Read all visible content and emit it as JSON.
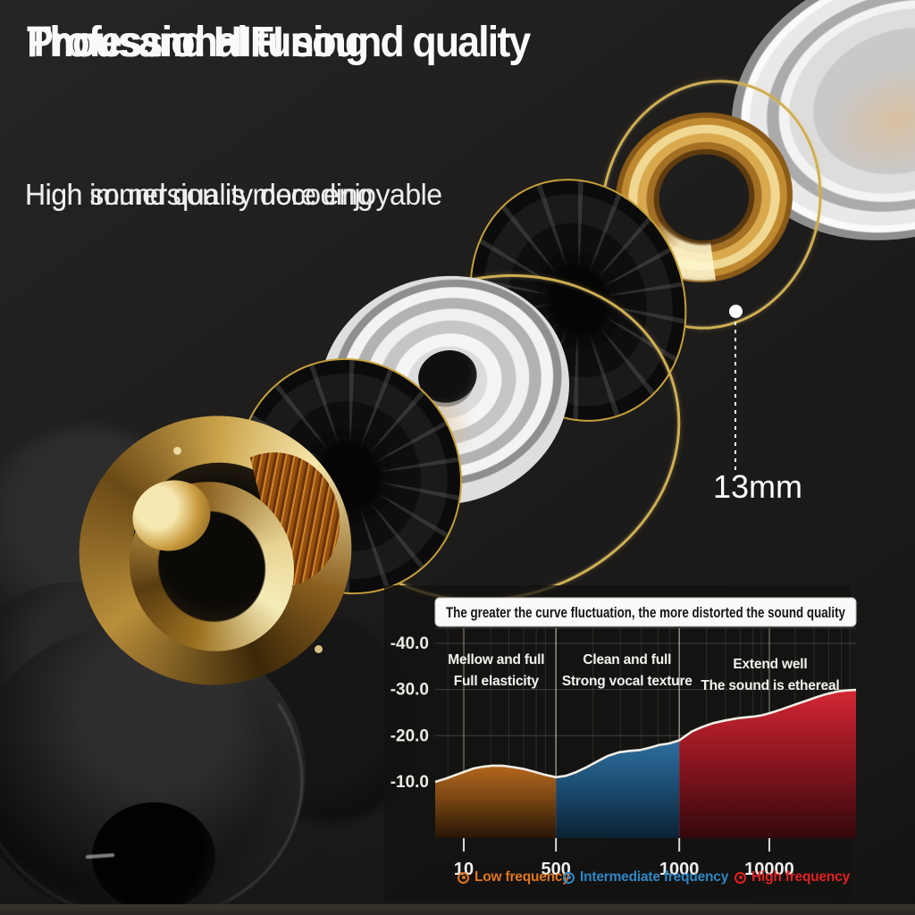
{
  "page": {
    "background": "#1e1d1c",
    "accent_gold": "#cfae52",
    "bottom_band_color": "#332f2a"
  },
  "header": {
    "title_line1": "Professional tuning",
    "title_line2": "Thousand HIFI sound quality",
    "subtitle_line1": "High sound quality decoding",
    "subtitle_line2": "High immersion is more enjoyable"
  },
  "callout": {
    "label": "13mm"
  },
  "chart_data": {
    "type": "area",
    "title": "The greater the curve fluctuation, the more distorted the sound quality",
    "title_bar_bg": "#fbfaf8",
    "title_text_color": "#151515",
    "x_axis": {
      "scale": "log-like",
      "ticks": [
        {
          "label": "10",
          "f": 0.068
        },
        {
          "label": "500",
          "f": 0.287
        },
        {
          "label": "1000",
          "f": 0.58
        },
        {
          "label": "10000",
          "f": 0.794
        }
      ]
    },
    "y_axis": {
      "ticks_db": [
        -40,
        -30,
        -20,
        -10
      ],
      "top_value": -40,
      "bottom_value": -10,
      "inverted": true
    },
    "curve_stroke": "#f2ece3",
    "curve_db": [
      [
        0.0,
        -10.0
      ],
      [
        0.025,
        -10.7
      ],
      [
        0.049,
        -11.5
      ],
      [
        0.07,
        -12.2
      ],
      [
        0.091,
        -12.9
      ],
      [
        0.115,
        -13.3
      ],
      [
        0.135,
        -13.5
      ],
      [
        0.16,
        -13.5
      ],
      [
        0.185,
        -13.2
      ],
      [
        0.21,
        -12.8
      ],
      [
        0.235,
        -12.2
      ],
      [
        0.262,
        -11.5
      ],
      [
        0.287,
        -11.0
      ],
      [
        0.31,
        -11.3
      ],
      [
        0.335,
        -12.1
      ],
      [
        0.36,
        -13.2
      ],
      [
        0.389,
        -14.6
      ],
      [
        0.41,
        -15.6
      ],
      [
        0.437,
        -16.4
      ],
      [
        0.46,
        -16.7
      ],
      [
        0.488,
        -16.9
      ],
      [
        0.51,
        -17.4
      ],
      [
        0.533,
        -18.0
      ],
      [
        0.555,
        -18.3
      ],
      [
        0.58,
        -19.0
      ],
      [
        0.61,
        -20.9
      ],
      [
        0.635,
        -21.9
      ],
      [
        0.66,
        -22.7
      ],
      [
        0.69,
        -23.3
      ],
      [
        0.72,
        -23.8
      ],
      [
        0.754,
        -24.1
      ],
      [
        0.775,
        -24.4
      ],
      [
        0.796,
        -24.9
      ],
      [
        0.82,
        -25.6
      ],
      [
        0.851,
        -26.6
      ],
      [
        0.88,
        -27.5
      ],
      [
        0.908,
        -28.4
      ],
      [
        0.93,
        -29.0
      ],
      [
        0.957,
        -29.6
      ],
      [
        0.98,
        -29.8
      ],
      [
        1.0,
        -29.9
      ]
    ],
    "regions": [
      {
        "name": "low",
        "f_start": 0.0,
        "f_end": 0.287,
        "label_center_f": 0.145,
        "annotation": [
          "Mellow and full",
          "Full elasticity"
        ],
        "fill_top": "#b4671c",
        "fill_mid": "#7a4614",
        "fill_bottom": "#261505",
        "legend_label": "Low frequency",
        "legend_color": "#e0761e"
      },
      {
        "name": "intermediate",
        "f_start": 0.287,
        "f_end": 0.58,
        "label_center_f": 0.456,
        "annotation": [
          "Clean and full",
          "Strong vocal texture"
        ],
        "fill_top": "#2f6f9e",
        "fill_mid": "#1d4e74",
        "fill_bottom": "#0b2133",
        "legend_label": "Intermediate frequency",
        "legend_color": "#2f87c5"
      },
      {
        "name": "high",
        "f_start": 0.58,
        "f_end": 1.0,
        "label_center_f": 0.796,
        "annotation": [
          "Extend well",
          "The sound is ethereal"
        ],
        "fill_top": "#d32734",
        "fill_mid": "#8f1620",
        "fill_bottom": "#33080c",
        "legend_label": "High frequency",
        "legend_color": "#e02222"
      }
    ],
    "grid": {
      "minor_v_f": [
        0.03,
        0.132,
        0.175,
        0.21,
        0.24,
        0.262,
        0.375,
        0.44,
        0.49,
        0.53,
        0.557,
        0.645,
        0.69,
        0.725,
        0.755,
        0.775,
        0.855,
        0.9,
        0.935,
        0.965,
        0.985
      ]
    }
  }
}
